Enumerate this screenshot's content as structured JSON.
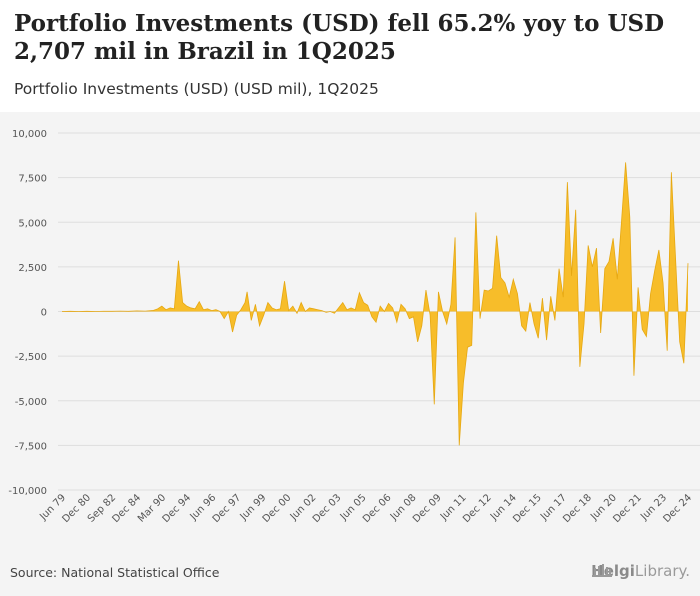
{
  "chart_data": {
    "type": "area",
    "title": "Portfolio Investments (USD) fell 65.2% yoy to USD 2,707 mil in Brazil in 1Q2025",
    "subtitle": "Portfolio Investments (USD) (USD mil), 1Q2025",
    "xlabel": "",
    "ylabel": "",
    "ylim": [
      -10000,
      10000
    ],
    "yticks": [
      10000,
      7500,
      5000,
      2500,
      0,
      -2500,
      -5000,
      -7500,
      -10000
    ],
    "ytick_labels": [
      "10,000",
      "7,500",
      "5,000",
      "2,500",
      "0",
      "-2,500",
      "-5,000",
      "-7,500",
      "-10,000"
    ],
    "xtick_labels": [
      "Jun 79",
      "Dec 80",
      "Sep 82",
      "Dec 84",
      "Mar 90",
      "Dec 94",
      "Jun 96",
      "Dec 97",
      "Jun 99",
      "Dec 00",
      "Jun 02",
      "Dec 03",
      "Jun 05",
      "Dec 06",
      "Jun 08",
      "Dec 09",
      "Jun 11",
      "Dec 12",
      "Jun 14",
      "Dec 15",
      "Jun 17",
      "Dec 18",
      "Jun 20",
      "Dec 21",
      "Jun 23",
      "Dec 24"
    ],
    "fill_color": "#f7bd2a",
    "series": [
      {
        "name": "Portfolio Investments (USD)",
        "points": [
          [
            0,
            0
          ],
          [
            4,
            10
          ],
          [
            8,
            0
          ],
          [
            12,
            10
          ],
          [
            16,
            0
          ],
          [
            20,
            15
          ],
          [
            24,
            10
          ],
          [
            28,
            20
          ],
          [
            32,
            10
          ],
          [
            36,
            30
          ],
          [
            40,
            20
          ],
          [
            44,
            60
          ],
          [
            46,
            150
          ],
          [
            48,
            300
          ],
          [
            50,
            100
          ],
          [
            52,
            200
          ],
          [
            54,
            150
          ],
          [
            56,
            2850
          ],
          [
            58,
            500
          ],
          [
            60,
            300
          ],
          [
            62,
            200
          ],
          [
            64,
            150
          ],
          [
            66,
            550
          ],
          [
            68,
            100
          ],
          [
            70,
            150
          ],
          [
            72,
            50
          ],
          [
            74,
            100
          ],
          [
            76,
            0
          ],
          [
            78,
            -400
          ],
          [
            80,
            0
          ],
          [
            82,
            -1150
          ],
          [
            84,
            -200
          ],
          [
            86,
            100
          ],
          [
            88,
            500
          ],
          [
            89,
            1100
          ],
          [
            91,
            -500
          ],
          [
            93,
            400
          ],
          [
            95,
            -800
          ],
          [
            97,
            -200
          ],
          [
            99,
            500
          ],
          [
            101,
            200
          ],
          [
            103,
            100
          ],
          [
            105,
            150
          ],
          [
            107,
            1700
          ],
          [
            109,
            50
          ],
          [
            111,
            300
          ],
          [
            113,
            -100
          ],
          [
            115,
            500
          ],
          [
            117,
            0
          ],
          [
            119,
            200
          ],
          [
            121,
            150
          ],
          [
            123,
            100
          ],
          [
            125,
            50
          ],
          [
            127,
            -50
          ],
          [
            129,
            0
          ],
          [
            131,
            -100
          ],
          [
            133,
            200
          ],
          [
            135,
            500
          ],
          [
            137,
            100
          ],
          [
            139,
            200
          ],
          [
            141,
            100
          ],
          [
            143,
            1050
          ],
          [
            145,
            500
          ],
          [
            147,
            350
          ],
          [
            149,
            -300
          ],
          [
            151,
            -600
          ],
          [
            153,
            300
          ],
          [
            155,
            0
          ],
          [
            157,
            450
          ],
          [
            159,
            200
          ],
          [
            161,
            -600
          ],
          [
            163,
            400
          ],
          [
            165,
            150
          ],
          [
            167,
            -400
          ],
          [
            169,
            -300
          ],
          [
            171,
            -1700
          ],
          [
            173,
            -800
          ],
          [
            175,
            1200
          ],
          [
            177,
            -200
          ],
          [
            179,
            -5200
          ],
          [
            181,
            1100
          ],
          [
            183,
            0
          ],
          [
            185,
            -700
          ],
          [
            187,
            400
          ],
          [
            189,
            4150
          ],
          [
            191,
            -7500
          ],
          [
            193,
            -4000
          ],
          [
            195,
            -2000
          ],
          [
            197,
            -1900
          ],
          [
            199,
            5550
          ],
          [
            201,
            -400
          ],
          [
            203,
            1200
          ],
          [
            205,
            1150
          ],
          [
            207,
            1300
          ],
          [
            209,
            4250
          ],
          [
            211,
            1900
          ],
          [
            213,
            1600
          ],
          [
            215,
            800
          ],
          [
            217,
            1800
          ],
          [
            219,
            1000
          ],
          [
            221,
            -800
          ],
          [
            223,
            -1100
          ],
          [
            225,
            500
          ],
          [
            227,
            -700
          ],
          [
            229,
            -1500
          ],
          [
            231,
            750
          ],
          [
            233,
            -1600
          ],
          [
            235,
            850
          ],
          [
            237,
            -500
          ],
          [
            239,
            2400
          ],
          [
            241,
            800
          ],
          [
            243,
            7250
          ],
          [
            245,
            2000
          ],
          [
            247,
            5700
          ],
          [
            249,
            -3100
          ],
          [
            251,
            -700
          ],
          [
            253,
            3700
          ],
          [
            255,
            2500
          ],
          [
            257,
            3550
          ],
          [
            259,
            -1200
          ],
          [
            261,
            2400
          ],
          [
            263,
            2800
          ],
          [
            265,
            4100
          ],
          [
            267,
            1800
          ],
          [
            269,
            5000
          ],
          [
            271,
            8350
          ],
          [
            273,
            5300
          ],
          [
            275,
            -3600
          ],
          [
            277,
            1350
          ],
          [
            279,
            -1000
          ],
          [
            281,
            -1400
          ],
          [
            283,
            1000
          ],
          [
            285,
            2300
          ],
          [
            287,
            3450
          ],
          [
            289,
            1600
          ],
          [
            291,
            -2200
          ],
          [
            293,
            7800
          ],
          [
            295,
            3000
          ],
          [
            297,
            -1700
          ],
          [
            299,
            -2900
          ],
          [
            301,
            2707
          ]
        ]
      }
    ]
  },
  "source": "Source: National Statistical Office",
  "logo": {
    "brand": "Helgi",
    "suffix": "Library."
  }
}
